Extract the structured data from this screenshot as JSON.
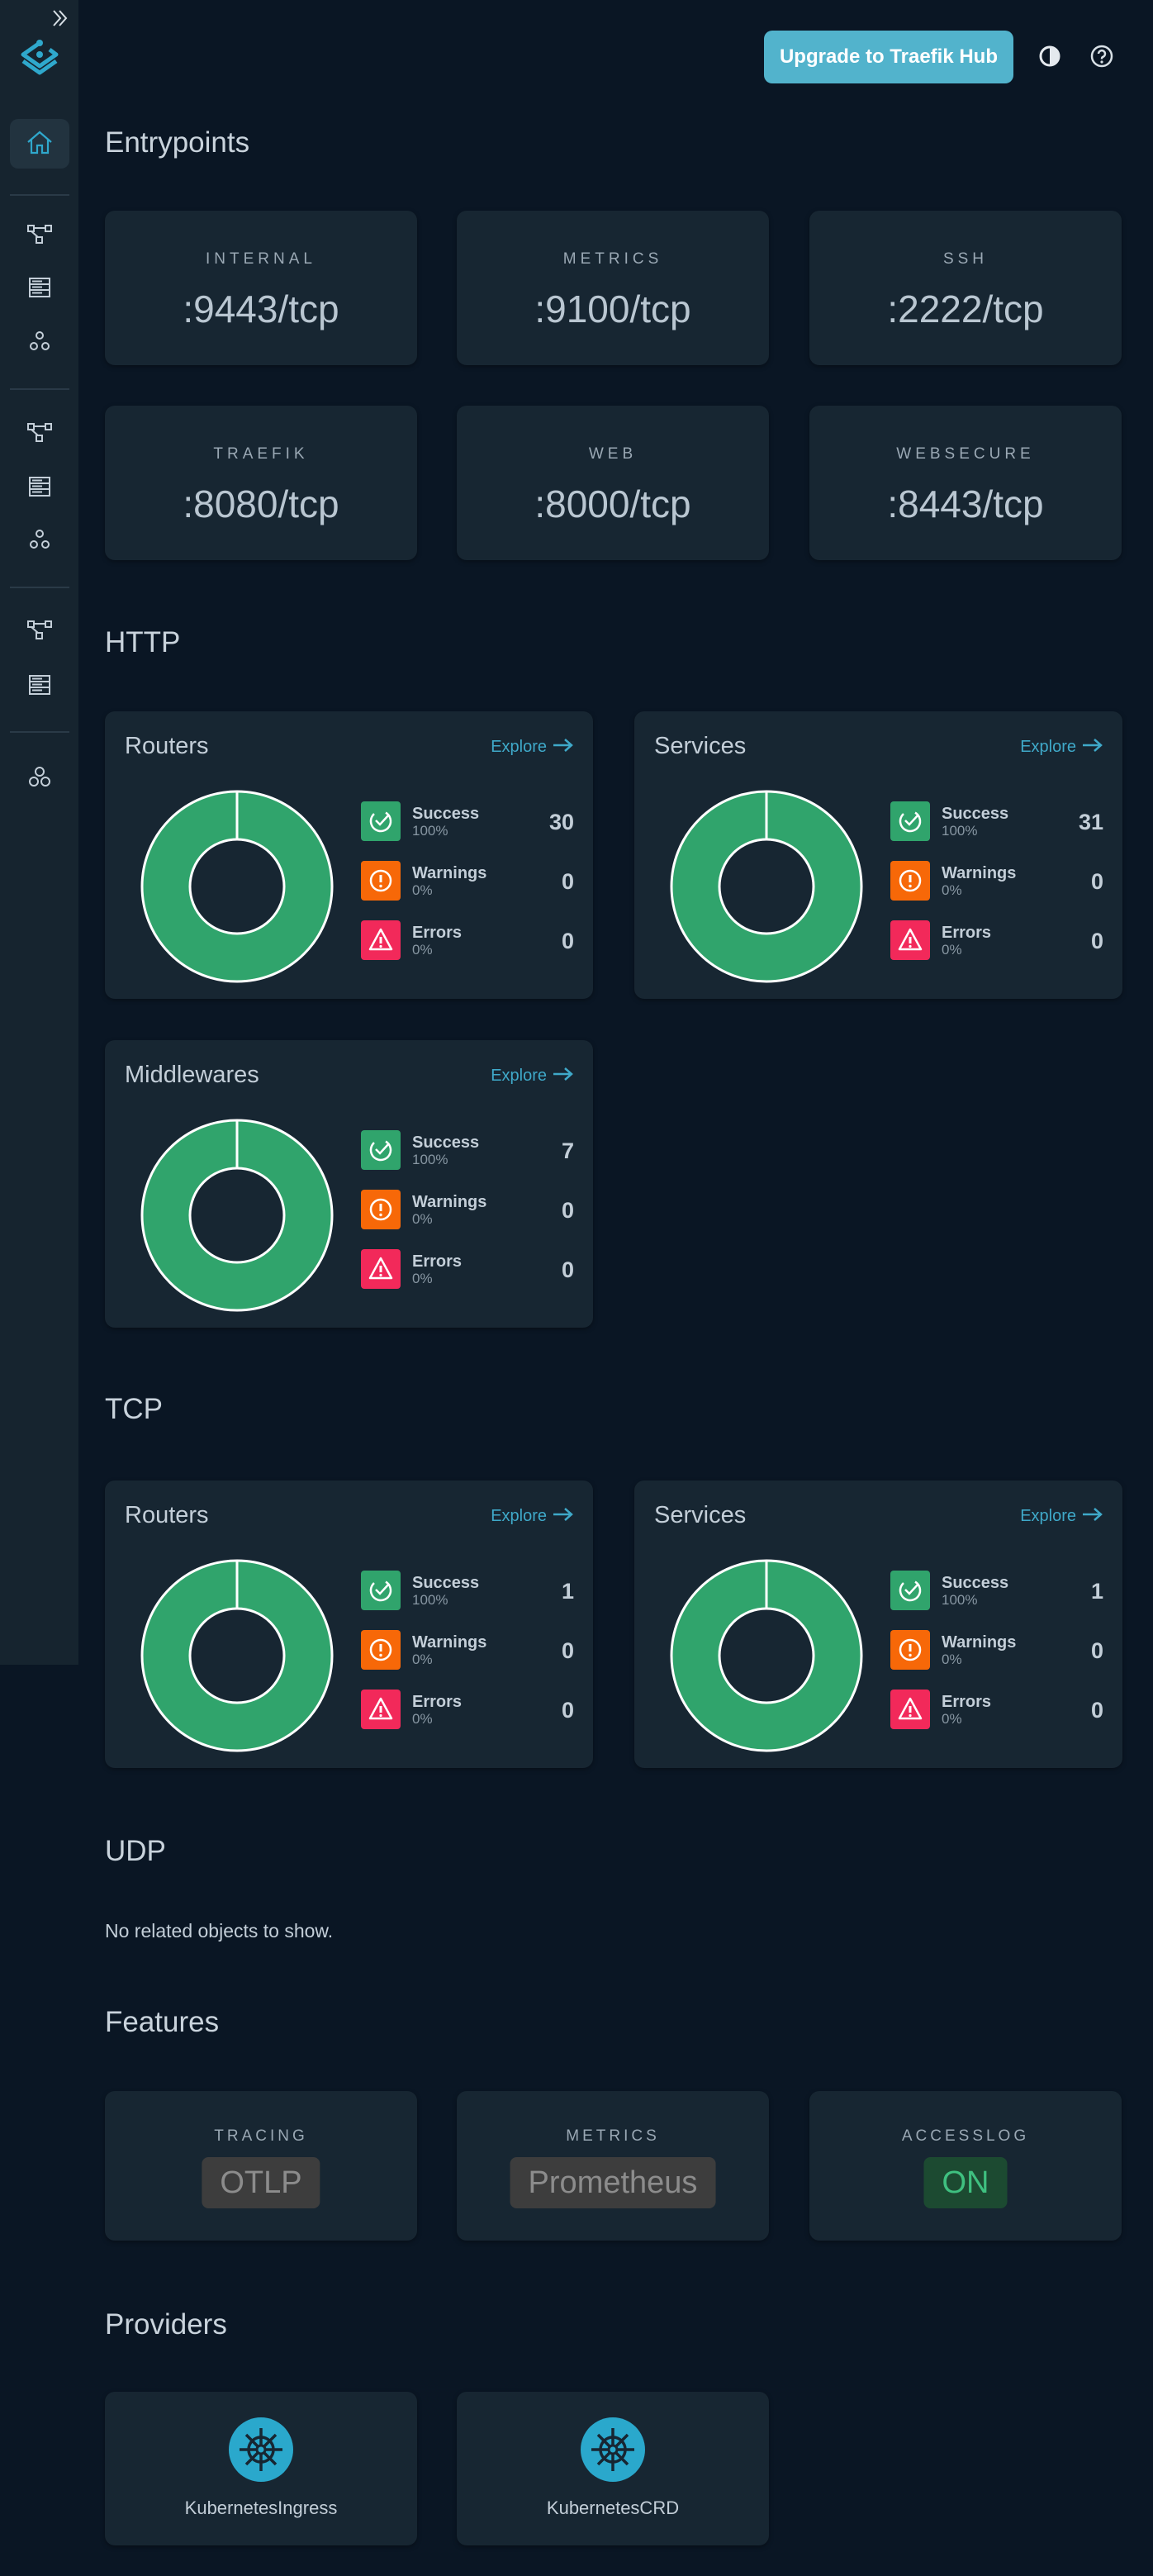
{
  "header": {
    "upgrade_label": "Upgrade to Traefik Hub",
    "theme_icon": "contrast-icon",
    "help_icon": "help-icon"
  },
  "sidebar": {
    "items": [
      {
        "icon": "home-icon",
        "active": true
      },
      {
        "icon": "routers-icon"
      },
      {
        "icon": "services-icon"
      },
      {
        "icon": "middlewares-icon"
      },
      {
        "icon": "routers-icon"
      },
      {
        "icon": "services-icon"
      },
      {
        "icon": "middlewares-icon"
      },
      {
        "icon": "routers-icon"
      },
      {
        "icon": "services-icon"
      },
      {
        "icon": "plugins-icon"
      }
    ]
  },
  "colors": {
    "success": "#30a46c",
    "warning": "#f76808",
    "error": "#f2295a",
    "accent": "#52b3cc",
    "explore": "#3fa9c9"
  },
  "entrypoints": {
    "title": "Entrypoints",
    "items": [
      {
        "name": "INTERNAL",
        "value": ":9443/tcp"
      },
      {
        "name": "METRICS",
        "value": ":9100/tcp"
      },
      {
        "name": "SSH",
        "value": ":2222/tcp"
      },
      {
        "name": "TRAEFIK",
        "value": ":8080/tcp"
      },
      {
        "name": "WEB",
        "value": ":8000/tcp"
      },
      {
        "name": "WEBSECURE",
        "value": ":8443/tcp"
      }
    ]
  },
  "http": {
    "title": "HTTP",
    "cards": [
      {
        "title": "Routers",
        "explore": "Explore",
        "success": {
          "label": "Success",
          "pct": "100%",
          "count": "30"
        },
        "warnings": {
          "label": "Warnings",
          "pct": "0%",
          "count": "0"
        },
        "errors": {
          "label": "Errors",
          "pct": "0%",
          "count": "0"
        }
      },
      {
        "title": "Services",
        "explore": "Explore",
        "success": {
          "label": "Success",
          "pct": "100%",
          "count": "31"
        },
        "warnings": {
          "label": "Warnings",
          "pct": "0%",
          "count": "0"
        },
        "errors": {
          "label": "Errors",
          "pct": "0%",
          "count": "0"
        }
      },
      {
        "title": "Middlewares",
        "explore": "Explore",
        "success": {
          "label": "Success",
          "pct": "100%",
          "count": "7"
        },
        "warnings": {
          "label": "Warnings",
          "pct": "0%",
          "count": "0"
        },
        "errors": {
          "label": "Errors",
          "pct": "0%",
          "count": "0"
        }
      }
    ]
  },
  "tcp": {
    "title": "TCP",
    "cards": [
      {
        "title": "Routers",
        "explore": "Explore",
        "success": {
          "label": "Success",
          "pct": "100%",
          "count": "1"
        },
        "warnings": {
          "label": "Warnings",
          "pct": "0%",
          "count": "0"
        },
        "errors": {
          "label": "Errors",
          "pct": "0%",
          "count": "0"
        }
      },
      {
        "title": "Services",
        "explore": "Explore",
        "success": {
          "label": "Success",
          "pct": "100%",
          "count": "1"
        },
        "warnings": {
          "label": "Warnings",
          "pct": "0%",
          "count": "0"
        },
        "errors": {
          "label": "Errors",
          "pct": "0%",
          "count": "0"
        }
      }
    ]
  },
  "udp": {
    "title": "UDP",
    "empty": "No related objects to show."
  },
  "features": {
    "title": "Features",
    "items": [
      {
        "name": "TRACING",
        "value": "OTLP",
        "state": "neutral"
      },
      {
        "name": "METRICS",
        "value": "Prometheus",
        "state": "neutral"
      },
      {
        "name": "ACCESSLOG",
        "value": "ON",
        "state": "on"
      }
    ]
  },
  "providers": {
    "title": "Providers",
    "items": [
      {
        "name": "KubernetesIngress",
        "icon": "kubernetes-icon"
      },
      {
        "name": "KubernetesCRD",
        "icon": "kubernetes-icon"
      }
    ]
  }
}
